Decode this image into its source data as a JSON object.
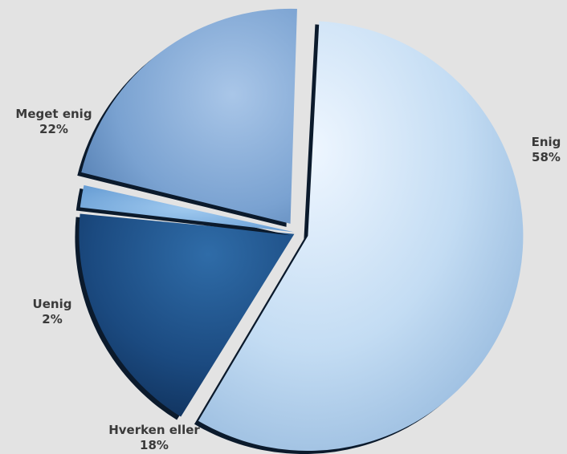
{
  "chart_data": {
    "type": "pie",
    "slices": [
      {
        "label": "Enig",
        "value": 58,
        "value_label": "58%",
        "color": "#b9d6f2",
        "exploded": true
      },
      {
        "label": "Hverken eller",
        "value": 18,
        "value_label": "18%",
        "color": "#1c4f86"
      },
      {
        "label": "Uenig",
        "value": 2,
        "value_label": "2%",
        "color": "#6fa6dc"
      },
      {
        "label": "Meget enig",
        "value": 22,
        "value_label": "22%",
        "color": "#6e98c8"
      }
    ],
    "legend": "none",
    "style": "3d-exploded"
  }
}
